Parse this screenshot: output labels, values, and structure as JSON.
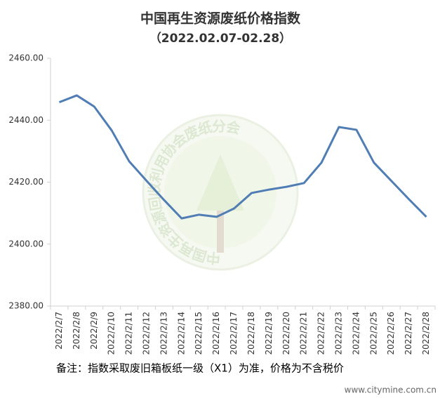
{
  "chart_data": {
    "type": "line",
    "title": "中国再生资源废纸价格指数",
    "subtitle": "（2022.02.07-02.28）",
    "note": "备注：指数采取废旧箱板纸一级（X1）为准，价格为不含税价",
    "watermark": "中国再生资源回收利用协会废纸分会",
    "source": "www.citymine.com.cn",
    "categories": [
      "2022/2/7",
      "2022/2/8",
      "2022/2/9",
      "2022/2/10",
      "2022/2/11",
      "2022/2/12",
      "2022/2/13",
      "2022/2/14",
      "2022/2/15",
      "2022/2/16",
      "2022/2/17",
      "2022/2/18",
      "2022/2/19",
      "2022/2/20",
      "2022/2/21",
      "2022/2/22",
      "2022/2/23",
      "2022/2/24",
      "2022/2/25",
      "2022/2/26",
      "2022/2/27",
      "2022/2/28"
    ],
    "series": [
      {
        "color": "#4f7db4",
        "values": [
          2445.8,
          2448.0,
          2444.4,
          2436.7,
          2426.7,
          2420.4,
          2414.2,
          2408.3,
          2409.5,
          2408.8,
          2411.5,
          2416.5,
          2417.6,
          2418.5,
          2419.7,
          2426.3,
          2437.8,
          2436.9,
          2426.3,
          2420.4,
          2414.5,
          2408.8
        ]
      }
    ],
    "ylim": [
      2380,
      2460
    ],
    "yticks": [
      {
        "value": 2380,
        "label": "2380.00"
      },
      {
        "value": 2400,
        "label": "2400.00"
      },
      {
        "value": 2420,
        "label": "2420.00"
      },
      {
        "value": 2440,
        "label": "2440.00"
      },
      {
        "value": 2460,
        "label": "2460.00"
      }
    ],
    "grid": false
  }
}
